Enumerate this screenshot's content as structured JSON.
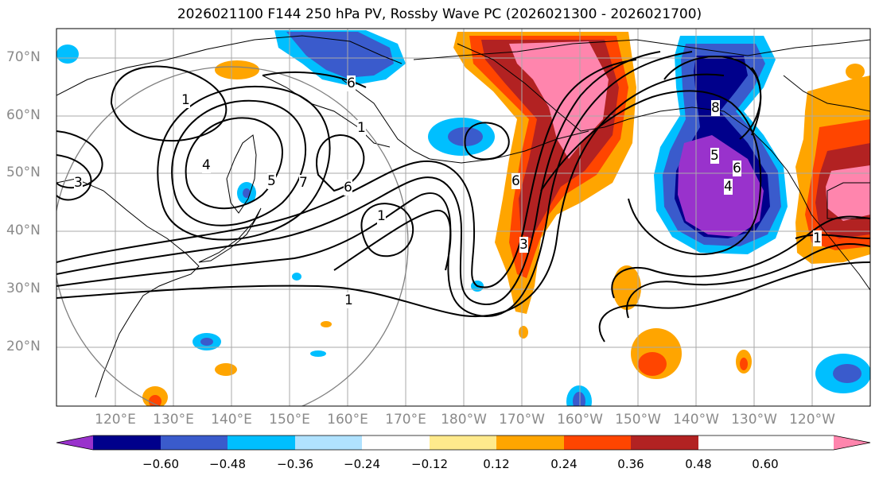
{
  "title": "2026021100 F144 250 hPa PV, Rossby Wave PC (2026021300 - 2026021700)",
  "lat_labels": [
    "70°N",
    "60°N",
    "50°N",
    "40°N",
    "30°N",
    "20°N"
  ],
  "lon_labels": [
    "120°E",
    "130°E",
    "140°E",
    "150°E",
    "160°E",
    "170°E",
    "180°W",
    "170°W",
    "160°W",
    "150°W",
    "140°W",
    "130°W",
    "120°W"
  ],
  "contour_labels": [
    "1",
    "6",
    "1",
    "3",
    "4",
    "5",
    "7",
    "6",
    "1",
    "1",
    "6",
    "3",
    "5",
    "6",
    "4",
    "8",
    "1"
  ],
  "colorbar": {
    "ticks": [
      "−0.60",
      "−0.48",
      "−0.36",
      "−0.24",
      "−0.12",
      "0.12",
      "0.24",
      "0.36",
      "0.48",
      "0.60"
    ],
    "colors": [
      "#9932cc",
      "#00008b",
      "#3a5bcc",
      "#00bfff",
      "#b0e2ff",
      "#ffffff",
      "#ffea8c",
      "#ffa500",
      "#ff4500",
      "#b22222",
      "#ff85ad"
    ]
  }
}
